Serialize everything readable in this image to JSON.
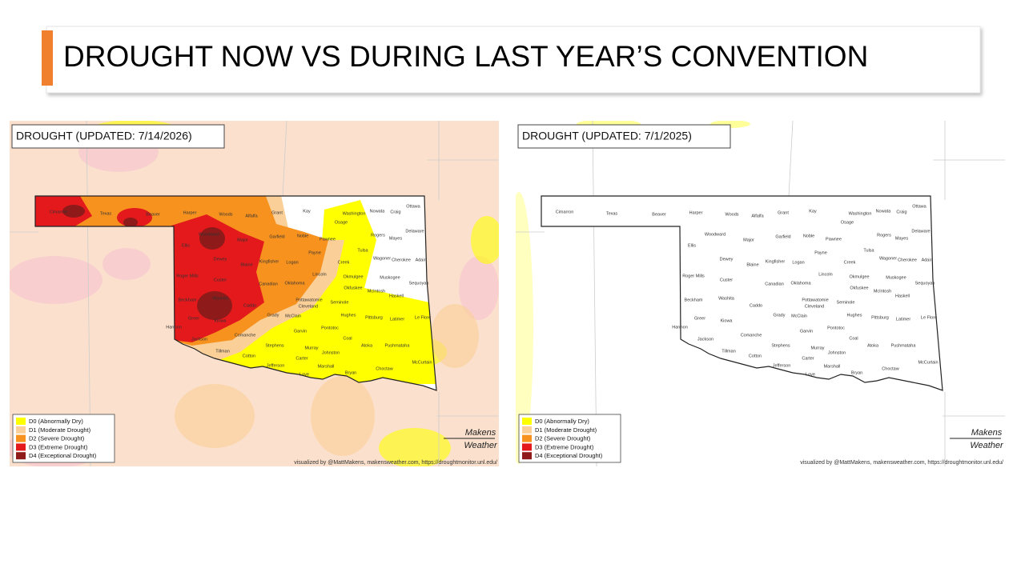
{
  "slide_title": "DROUGHT NOW VS DURING LAST YEAR’S CONVENTION",
  "maps": [
    {
      "title": "DROUGHT (UPDATED: 7/14/2026)"
    },
    {
      "title": "DROUGHT (UPDATED: 7/1/2025)"
    }
  ],
  "legend": [
    {
      "label": "D0 (Abnormally Dry)",
      "color": "#ffff00"
    },
    {
      "label": "D1 (Moderate Drought)",
      "color": "#fbcf98"
    },
    {
      "label": "D2 (Severe Drought)",
      "color": "#f7921e"
    },
    {
      "label": "D3 (Extreme Drought)",
      "color": "#e3191c"
    },
    {
      "label": "D4 (Exceptional Drought)",
      "color": "#8e1a1a"
    }
  ],
  "credit": "visualized by @MattMakens, makensweather.com, https://droughtmonitor.unl.edu/",
  "logo": [
    "Makens",
    "Weather"
  ],
  "counties": [
    "Cimarron",
    "Texas",
    "Beaver",
    "Harper",
    "Woods",
    "Alfalfa",
    "Grant",
    "Kay",
    "Osage",
    "Washington",
    "Nowata",
    "Craig",
    "Ottawa",
    "Delaware",
    "Mayes",
    "Rogers",
    "Woodward",
    "Major",
    "Garfield",
    "Noble",
    "Pawnee",
    "Ellis",
    "Payne",
    "Tulsa",
    "Creek",
    "Wagoner",
    "Cherokee",
    "Adair",
    "Dewey",
    "Blaine",
    "Kingfisher",
    "Logan",
    "Lincoln",
    "Okmulgee",
    "Muskogee",
    "Sequoyah",
    "Roger Mills",
    "Custer",
    "Canadian",
    "Oklahoma",
    "Okfuskee",
    "McIntosh",
    "Haskell",
    "Beckham",
    "Washita",
    "Caddo",
    "Pottawatomie",
    "Cleveland",
    "Seminole",
    "Hughes",
    "Pittsburg",
    "Latimer",
    "Le Flore",
    "Greer",
    "Kiowa",
    "Grady",
    "McClain",
    "Harmon",
    "Comanche",
    "Garvin",
    "Pontotoc",
    "Coal",
    "Atoka",
    "Pushmataha",
    "Jackson",
    "Tillman",
    "Cotton",
    "Stephens",
    "Murray",
    "Johnston",
    "Carter",
    "McCurtain",
    "Jefferson",
    "Love",
    "Marshall",
    "Bryan",
    "Choctaw"
  ]
}
